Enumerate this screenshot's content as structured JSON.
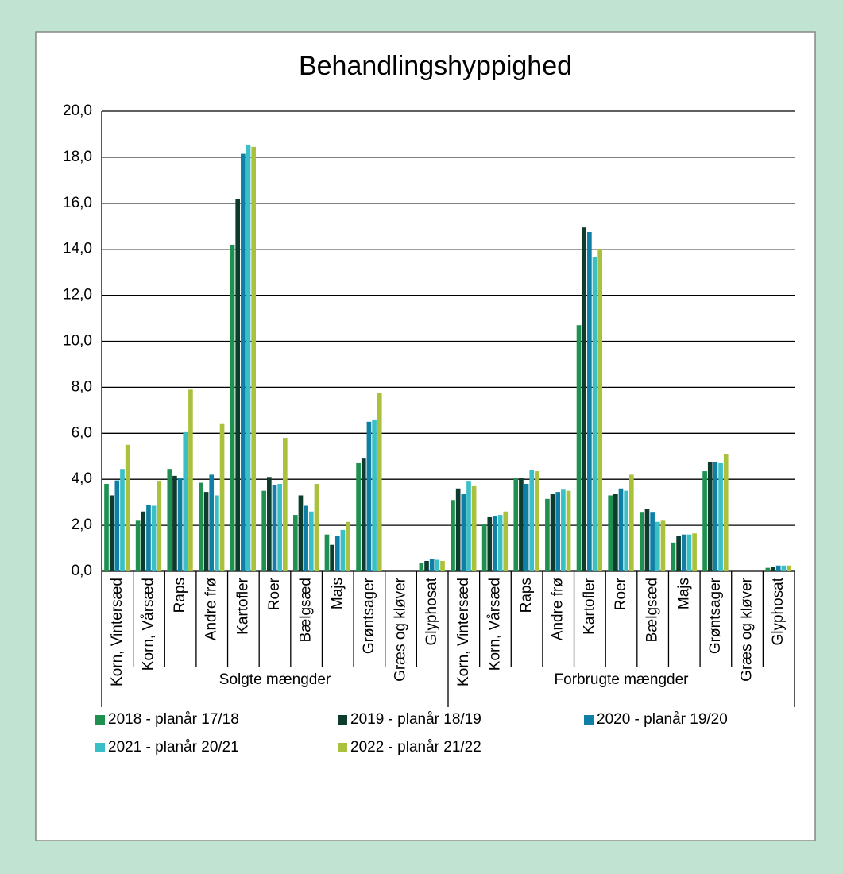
{
  "chart_data": {
    "type": "bar",
    "title": "Behandlingshyppighed",
    "categories": [
      "Korn, Vintersæd",
      "Korn, Vårsæd",
      "Raps",
      "Andre frø",
      "Kartofler",
      "Roer",
      "Bælgsæd",
      "Majs",
      "Grøntsager",
      "Græs og kløver",
      "Glyphosat",
      "Korn, Vintersæd",
      "Korn, Vårsæd",
      "Raps",
      "Andre frø",
      "Kartofler",
      "Roer",
      "Bælgsæd",
      "Majs",
      "Grøntsager",
      "Græs og kløver",
      "Glyphosat"
    ],
    "groups": [
      "Solgte mængder",
      "Forbrugte mængder"
    ],
    "series": [
      {
        "name": "2018 - planår 17/18",
        "color": "#1e9150",
        "values": [
          3.8,
          2.2,
          4.45,
          3.85,
          14.2,
          3.5,
          2.45,
          1.6,
          4.7,
          null,
          0.35,
          3.1,
          2.05,
          4.05,
          3.15,
          10.7,
          3.3,
          2.55,
          1.25,
          4.35,
          null,
          0.15
        ]
      },
      {
        "name": "2019 - planår 18/19",
        "color": "#0d3b2e",
        "values": [
          3.3,
          2.6,
          4.15,
          3.45,
          16.2,
          4.1,
          3.3,
          1.15,
          4.9,
          null,
          0.45,
          3.6,
          2.35,
          4.05,
          3.35,
          14.95,
          3.35,
          2.7,
          1.55,
          4.75,
          null,
          0.2
        ]
      },
      {
        "name": "2020 - planår 19/20",
        "color": "#0f7fa6",
        "values": [
          3.95,
          2.9,
          4.05,
          4.2,
          18.15,
          3.75,
          2.85,
          1.55,
          6.5,
          null,
          0.55,
          3.35,
          2.4,
          3.8,
          3.45,
          14.75,
          3.6,
          2.55,
          1.6,
          4.75,
          null,
          0.25
        ]
      },
      {
        "name": "2021 - planår 20/21",
        "color": "#3bbfc6",
        "values": [
          4.45,
          2.85,
          6.05,
          3.3,
          18.55,
          3.8,
          2.6,
          1.8,
          6.6,
          null,
          0.5,
          3.9,
          2.45,
          4.4,
          3.55,
          13.65,
          3.5,
          2.15,
          1.6,
          4.7,
          null,
          0.25
        ]
      },
      {
        "name": "2022 - planår 21/22",
        "color": "#a9c13d",
        "values": [
          5.5,
          3.9,
          7.9,
          6.4,
          18.45,
          5.8,
          3.8,
          2.15,
          7.75,
          null,
          0.45,
          3.7,
          2.6,
          4.35,
          3.5,
          14.0,
          4.2,
          2.2,
          1.65,
          5.1,
          null,
          0.25
        ]
      }
    ],
    "ylim": [
      0,
      20
    ],
    "yticks": [
      {
        "value": 0,
        "label": "0,0"
      },
      {
        "value": 2,
        "label": "2,0"
      },
      {
        "value": 4,
        "label": "4,0"
      },
      {
        "value": 6,
        "label": "6,0"
      },
      {
        "value": 8,
        "label": "8,0"
      },
      {
        "value": 10,
        "label": "10,0"
      },
      {
        "value": 12,
        "label": "12,0"
      },
      {
        "value": 14,
        "label": "14,0"
      },
      {
        "value": 16,
        "label": "16,0"
      },
      {
        "value": 18,
        "label": "18,0"
      },
      {
        "value": 20,
        "label": "20,0"
      }
    ],
    "grid": true
  }
}
